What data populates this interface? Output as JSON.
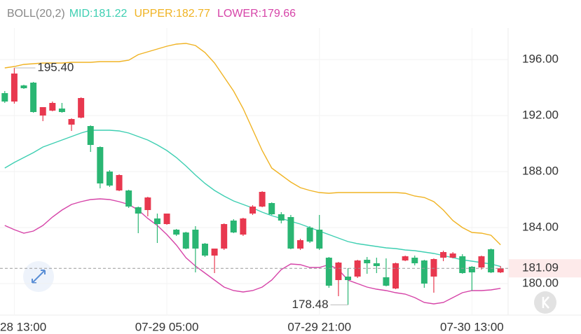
{
  "chart_data": {
    "type": "candlestick",
    "indicator": "BOLL(20,2)",
    "legend_labels": [
      "MID:181.22",
      "UPPER:182.77",
      "LOWER:179.66"
    ],
    "categories": [
      null,
      "28 13:00",
      null,
      null,
      null,
      null,
      null,
      null,
      null,
      null,
      null,
      null,
      null,
      null,
      null,
      null,
      null,
      "07-29 05:00",
      null,
      null,
      null,
      null,
      null,
      null,
      null,
      null,
      null,
      null,
      null,
      null,
      null,
      null,
      null,
      "07-29 21:00",
      null,
      null,
      null,
      null,
      null,
      null,
      null,
      null,
      null,
      null,
      null,
      null,
      null,
      null,
      null,
      "07-30 13:00",
      null,
      null,
      null
    ],
    "candles": {
      "open": [
        193.6,
        193.0,
        194.15,
        194.35,
        192.0,
        192.35,
        192.5,
        191.35,
        191.85,
        191.25,
        189.75,
        188.0,
        186.65,
        186.65,
        185.45,
        185.25,
        184.65,
        184.25,
        183.85,
        183.65,
        183.85,
        182.85,
        182.0,
        182.5,
        184.5,
        183.5,
        185.0,
        185.5,
        185.75,
        184.95,
        184.75,
        182.5,
        184.0,
        183.85,
        181.85,
        180.25,
        180.5,
        180.5,
        181.7,
        181.45,
        180.45,
        179.65,
        181.65,
        181.85,
        181.65,
        180.5,
        181.85,
        181.85,
        181.95,
        181.2,
        181.15,
        182.45,
        180.8
      ],
      "close": [
        193.0,
        195.0,
        193.95,
        192.25,
        192.6,
        192.9,
        192.25,
        191.75,
        193.25,
        189.9,
        187.15,
        187.0,
        187.75,
        185.5,
        185.0,
        186.15,
        184.25,
        185.0,
        183.5,
        182.5,
        182.5,
        182.0,
        182.5,
        184.25,
        183.65,
        184.65,
        185.5,
        186.55,
        184.95,
        184.5,
        182.5,
        183.1,
        183.0,
        182.5,
        179.85,
        181.5,
        180.25,
        181.65,
        181.45,
        181.25,
        179.85,
        181.45,
        181.95,
        181.45,
        180.0,
        181.75,
        182.25,
        182.15,
        180.75,
        180.8,
        181.95,
        180.8,
        181.09
      ],
      "high": [
        193.75,
        195.4,
        194.2,
        194.4,
        192.6,
        193.0,
        192.9,
        191.8,
        193.3,
        191.3,
        189.8,
        188.1,
        187.8,
        186.7,
        185.5,
        186.2,
        185.0,
        185.0,
        183.9,
        183.7,
        184.1,
        182.9,
        182.5,
        184.3,
        184.6,
        184.7,
        185.6,
        186.6,
        185.8,
        185.1,
        184.9,
        183.2,
        184.1,
        184.9,
        181.9,
        181.55,
        181.1,
        181.7,
        181.9,
        181.85,
        181.8,
        181.5,
        182.0,
        182.0,
        181.7,
        181.8,
        182.35,
        182.25,
        182.1,
        181.25,
        182.0,
        182.5,
        181.25
      ],
      "low": [
        192.9,
        192.85,
        193.9,
        192.2,
        191.6,
        192.3,
        192.2,
        190.9,
        191.8,
        189.4,
        186.8,
        186.9,
        186.6,
        185.4,
        183.6,
        184.8,
        182.9,
        184.2,
        183.4,
        182.45,
        180.8,
        181.9,
        180.75,
        182.4,
        183.6,
        183.4,
        184.9,
        185.45,
        184.9,
        184.3,
        182.45,
        182.4,
        182.9,
        182.4,
        179.7,
        179.1,
        178.48,
        180.4,
        180.7,
        180.75,
        179.8,
        179.6,
        181.6,
        181.3,
        179.7,
        179.35,
        181.6,
        181.8,
        180.7,
        179.5,
        181.0,
        180.75,
        180.75
      ],
      "up_color": "#e8384f",
      "down_color": "#2ab673"
    },
    "series": [
      {
        "color": "#3ecfb2",
        "values": [
          188.25,
          188.65,
          189.0,
          189.35,
          189.75,
          190.0,
          190.25,
          190.5,
          190.75,
          190.95,
          190.95,
          190.95,
          190.9,
          190.75,
          190.5,
          190.25,
          189.9,
          189.5,
          189.0,
          188.4,
          187.75,
          187.15,
          186.65,
          186.25,
          185.9,
          185.65,
          185.4,
          185.1,
          184.85,
          184.65,
          184.45,
          184.25,
          184.0,
          183.75,
          183.5,
          183.25,
          183.0,
          182.85,
          182.75,
          182.65,
          182.55,
          182.5,
          182.4,
          182.35,
          182.25,
          182.15,
          182.0,
          181.85,
          181.7,
          181.6,
          181.5,
          181.4,
          181.22
        ]
      },
      {
        "color": "#f0b323",
        "values": [
          195.4,
          195.5,
          195.65,
          195.7,
          195.75,
          195.75,
          195.75,
          195.8,
          195.8,
          195.8,
          195.85,
          195.85,
          195.85,
          195.95,
          196.35,
          196.55,
          196.75,
          196.95,
          197.1,
          197.15,
          197.0,
          196.5,
          195.75,
          194.75,
          193.75,
          192.5,
          191.0,
          189.5,
          188.25,
          187.75,
          187.25,
          186.85,
          186.65,
          186.5,
          186.45,
          186.5,
          186.5,
          186.5,
          186.5,
          186.5,
          186.5,
          186.5,
          186.45,
          186.25,
          186.15,
          185.85,
          185.25,
          184.5,
          184.0,
          183.65,
          183.6,
          183.45,
          182.77
        ]
      },
      {
        "color": "#d644a8",
        "values": [
          184.15,
          183.85,
          183.6,
          183.75,
          184.15,
          184.75,
          185.25,
          185.65,
          185.85,
          186.0,
          186.05,
          186.0,
          185.85,
          185.65,
          185.25,
          184.65,
          184.15,
          183.5,
          182.75,
          181.85,
          181.25,
          180.75,
          180.25,
          179.75,
          179.5,
          179.4,
          179.5,
          179.75,
          180.25,
          181.0,
          181.4,
          181.35,
          181.15,
          181.15,
          181.35,
          181.0,
          180.25,
          180.0,
          179.75,
          179.6,
          179.5,
          179.35,
          179.25,
          179.0,
          178.65,
          178.55,
          178.65,
          179.0,
          179.35,
          179.5,
          179.5,
          179.55,
          179.66
        ]
      }
    ],
    "annotations": [
      {
        "value": 195.4,
        "label": "195.40"
      },
      {
        "value": 178.48,
        "label": "178.48"
      }
    ],
    "last_price": 181.09,
    "ylim": [
      177.75,
      198.75
    ],
    "yticks": [
      {
        "value": 180,
        "label": "180.00"
      },
      {
        "value": 184,
        "label": "184.00"
      },
      {
        "value": 188,
        "label": "188.00"
      },
      {
        "value": 192,
        "label": "192.00"
      },
      {
        "value": 196,
        "label": "196.00"
      }
    ],
    "grid": true
  }
}
